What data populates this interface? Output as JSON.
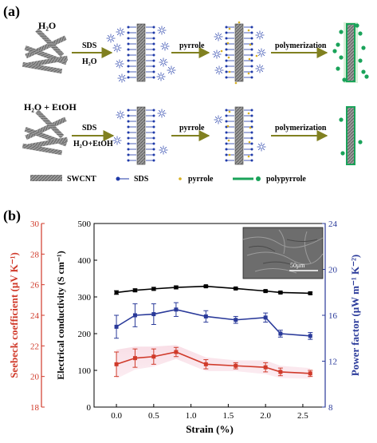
{
  "panel_a": {
    "label": "(a)",
    "rows": [
      {
        "solvent": "H₂O",
        "reagent_top": "SDS",
        "reagent_bottom": "H₂O",
        "step2": "pyrrole",
        "step3": "polymerization"
      },
      {
        "solvent": "H₂O + EtOH",
        "reagent_top": "SDS",
        "reagent_bottom": "H₂O+EtOH",
        "step2": "pyrrole",
        "step3": "polymerization"
      }
    ],
    "legend": [
      "SWCNT",
      "SDS",
      "pyrrole",
      "polypyrrole"
    ],
    "colors": {
      "arrow": "#808020",
      "sds_blue": "#1f3aa8",
      "pyrrole": "#d8b020",
      "polypyrrole": "#1aa35a",
      "cnt": "#8a8a8a"
    }
  },
  "panel_b": {
    "label": "(b)",
    "inset_scale": "50μm"
  },
  "chart_data": {
    "type": "line",
    "xlabel": "Strain (%)",
    "xlim": [
      -0.3,
      2.8
    ],
    "x_ticks": [
      "0.0",
      "0.5",
      "1.0",
      "1.5",
      "2.0",
      "2.5"
    ],
    "axes": {
      "left_outer": {
        "label": "Seebeck coefficient  (μV K⁻¹)",
        "range": [
          18,
          30
        ],
        "ticks": [
          "18",
          "20",
          "22",
          "24",
          "26",
          "28",
          "30"
        ],
        "color": "#d03a2a"
      },
      "left_inner": {
        "label": "Electrical conductivity  (S cm⁻¹)",
        "range": [
          0,
          500
        ],
        "ticks": [
          "0",
          "100",
          "200",
          "300",
          "400",
          "500"
        ],
        "color": "#000000"
      },
      "right": {
        "label": "Power factor  (μW m⁻¹ K⁻²)",
        "range": [
          8,
          24
        ],
        "ticks": [
          "8",
          "12",
          "16",
          "20",
          "24"
        ],
        "color": "#2a3a9a"
      }
    },
    "series": [
      {
        "axis": "left_inner",
        "color": "#000000",
        "marker": "square",
        "x": [
          0.0,
          0.25,
          0.5,
          0.8,
          1.2,
          1.6,
          2.0,
          2.2,
          2.6
        ],
        "y": [
          312,
          318,
          322,
          326,
          329,
          323,
          316,
          312,
          310
        ],
        "err": [
          5,
          4,
          4,
          4,
          3,
          3,
          3,
          3,
          3
        ]
      },
      {
        "axis": "right",
        "color": "#2a3a9a",
        "marker": "square",
        "x": [
          0.0,
          0.25,
          0.5,
          0.8,
          1.2,
          1.6,
          2.0,
          2.2,
          2.6
        ],
        "y": [
          15.0,
          16.0,
          16.1,
          16.5,
          15.9,
          15.6,
          15.8,
          14.4,
          14.2
        ],
        "err": [
          1.0,
          1.0,
          0.9,
          0.6,
          0.5,
          0.3,
          0.4,
          0.3,
          0.3
        ]
      },
      {
        "axis": "left_outer",
        "color": "#d03a2a",
        "marker": "square",
        "x": [
          0.0,
          0.25,
          0.5,
          0.8,
          1.2,
          1.6,
          2.0,
          2.2,
          2.6
        ],
        "y": [
          20.8,
          21.2,
          21.3,
          21.6,
          20.8,
          20.7,
          20.6,
          20.3,
          20.2
        ],
        "err": [
          0.8,
          0.6,
          0.5,
          0.3,
          0.3,
          0.2,
          0.3,
          0.25,
          0.2
        ]
      }
    ],
    "grid": false,
    "legend": "none"
  }
}
